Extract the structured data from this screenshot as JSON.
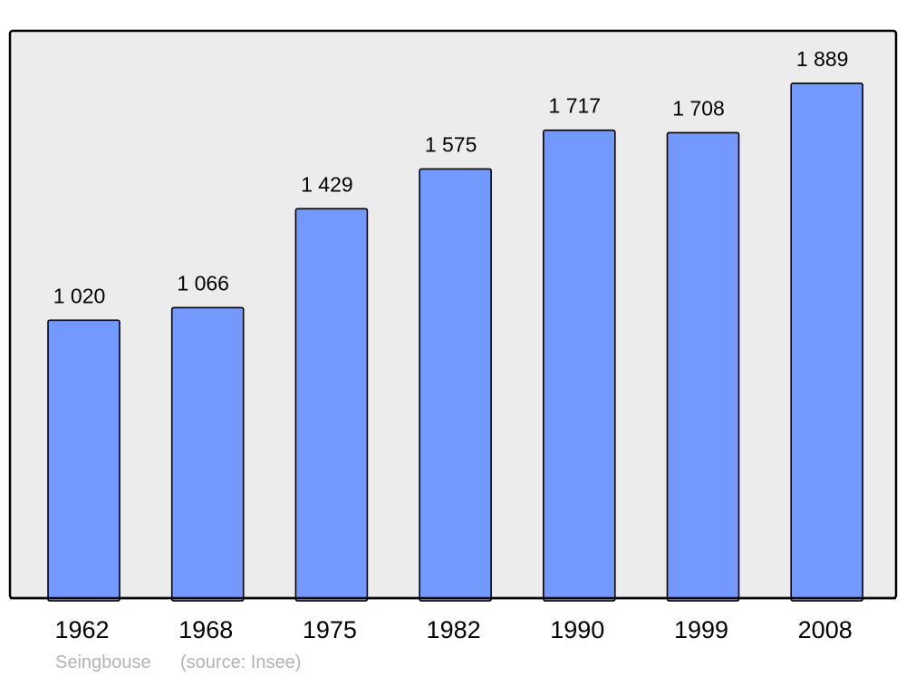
{
  "chart_data": {
    "type": "bar",
    "categories": [
      "1962",
      "1968",
      "1975",
      "1982",
      "1990",
      "1999",
      "2008"
    ],
    "values": [
      1020,
      1066,
      1429,
      1575,
      1717,
      1708,
      1889
    ],
    "data_labels": [
      "1 020",
      "1 066",
      "1 429",
      "1 575",
      "1 717",
      "1 708",
      "1 889"
    ],
    "title": "",
    "xlabel": "",
    "ylabel": "",
    "grid": false,
    "bar_color": "#7399ff",
    "plot_background": "#ececec",
    "footer": {
      "author": "Seingbouse",
      "source": "(source: Insee)"
    }
  }
}
